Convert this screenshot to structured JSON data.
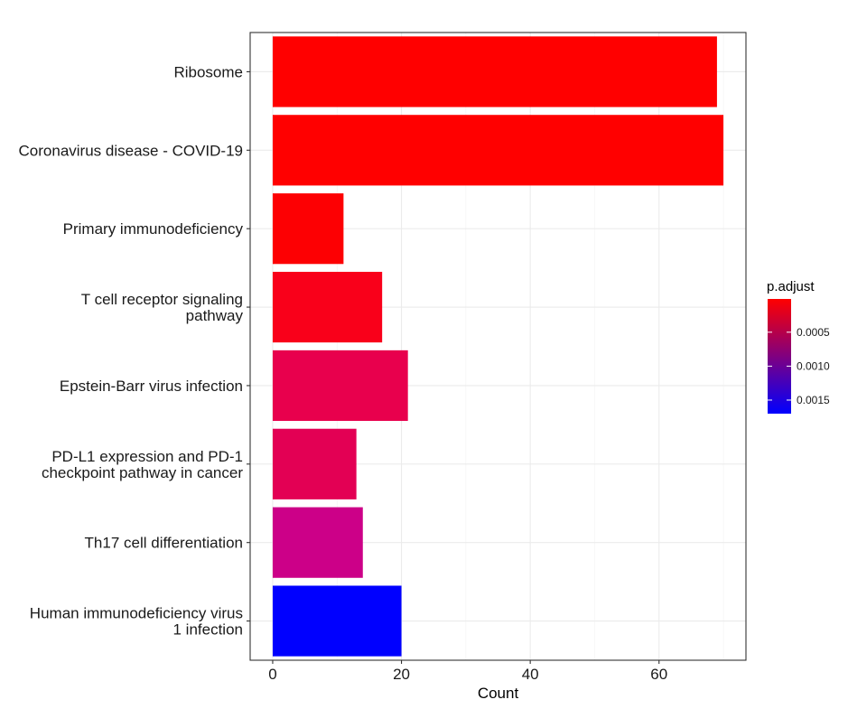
{
  "chart_data": {
    "type": "bar",
    "orientation": "horizontal",
    "categories": [
      [
        "Ribosome"
      ],
      [
        "Coronavirus disease - COVID-19"
      ],
      [
        "Primary immunodeficiency"
      ],
      [
        "T cell receptor signaling",
        "pathway"
      ],
      [
        "Epstein-Barr virus infection"
      ],
      [
        "PD-L1 expression and PD-1",
        "checkpoint pathway in cancer"
      ],
      [
        "Th17 cell differentiation"
      ],
      [
        "Human immunodeficiency virus",
        "1 infection"
      ]
    ],
    "values": [
      69,
      70,
      11,
      17,
      21,
      13,
      14,
      20
    ],
    "p_adjust": [
      1e-05,
      1e-05,
      2e-05,
      0.00012,
      0.0003,
      0.00035,
      0.0006,
      0.0017
    ],
    "bar_colors": [
      "#FF0000",
      "#FF0000",
      "#FD0003",
      "#F9001A",
      "#E8004D",
      "#E30054",
      "#CC0088",
      "#0000FF"
    ],
    "xlabel": "Count",
    "ylabel": "",
    "title": "",
    "xlim": [
      -3.5,
      73.5
    ],
    "xticks": [
      0,
      20,
      40,
      60
    ],
    "grid": true,
    "legend": {
      "title": "p.adjust",
      "position": "right",
      "range": [
        1e-05,
        0.0017
      ],
      "ticks": [
        0.0005,
        0.001,
        0.0015
      ],
      "tick_labels": [
        "0.0005",
        "0.0010",
        "0.0015"
      ],
      "low_color": "#FF0000",
      "high_color": "#0000FF"
    }
  }
}
